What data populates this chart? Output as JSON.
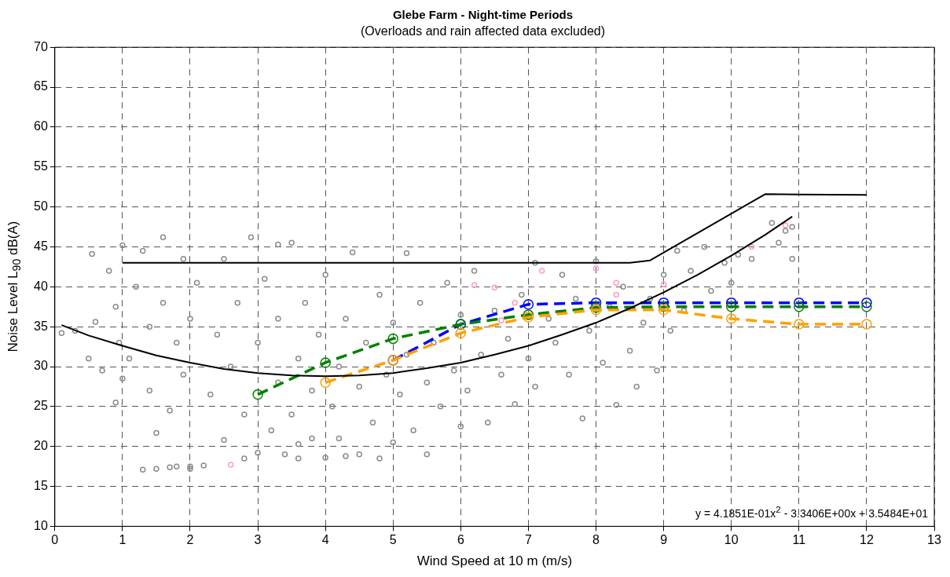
{
  "chart_data": {
    "type": "scatter",
    "title": "Glebe Farm - Night-time Periods",
    "subtitle": "(Overloads and rain affected data excluded)",
    "xlabel": "Wind Speed at 10 m (m/s)",
    "ylabel": "Noise Level L$_{90}$ dB(A)",
    "xlim": [
      0,
      13
    ],
    "xticks": [
      0,
      1,
      2,
      3,
      4,
      5,
      6,
      7,
      8,
      9,
      10,
      11,
      12,
      13
    ],
    "ylim": [
      10,
      70
    ],
    "yticks": [
      10,
      15,
      20,
      25,
      30,
      35,
      40,
      45,
      50,
      55,
      60,
      65,
      70
    ],
    "grid": true,
    "legend": false,
    "annotations": [
      "y = 4.1851E-01x$^{2}$ - 3.3406E+00x + 3.5484E+01"
    ],
    "series": [
      {
        "type": "scatter",
        "color": "#8c8c8c",
        "marker": "circle",
        "x": [
          0.1,
          0.3,
          0.5,
          0.55,
          0.6,
          0.7,
          0.8,
          0.9,
          0.9,
          0.95,
          1.0,
          1.0,
          1.1,
          1.2,
          1.3,
          1.3,
          1.4,
          1.4,
          1.5,
          1.5,
          1.6,
          1.6,
          1.7,
          1.8,
          1.8,
          1.9,
          1.9,
          2.0,
          2.0,
          2.1,
          2.2,
          2.3,
          2.4,
          2.5,
          2.5,
          2.6,
          2.7,
          2.8,
          2.8,
          2.9,
          3.0,
          3.0,
          3.1,
          3.2,
          3.3,
          3.3,
          3.4,
          3.5,
          3.5,
          3.6,
          3.6,
          3.7,
          3.8,
          3.8,
          3.9,
          4.0,
          4.0,
          4.1,
          4.2,
          4.2,
          4.3,
          4.4,
          4.5,
          4.5,
          4.6,
          4.7,
          4.8,
          4.9,
          5.0,
          5.0,
          5.1,
          5.2,
          5.2,
          5.3,
          5.4,
          5.5,
          5.5,
          5.6,
          5.7,
          5.8,
          5.9,
          6.0,
          6.0,
          6.1,
          6.2,
          6.3,
          6.4,
          6.5,
          6.6,
          6.7,
          6.8,
          6.9,
          7.0,
          7.1,
          7.1,
          7.3,
          7.4,
          7.5,
          7.6,
          7.7,
          7.8,
          7.9,
          8.0,
          8.1,
          8.2,
          8.3,
          8.4,
          8.5,
          8.6,
          8.7,
          8.8,
          8.9,
          9.0,
          9.1,
          9.2,
          9.3,
          9.4,
          9.6,
          9.7,
          9.9,
          10.0,
          10.1,
          10.3,
          10.6,
          10.7,
          10.8,
          10.9,
          10.9,
          2.0,
          1.7,
          3.3,
          4.3,
          3.6,
          4.8
        ],
        "values": [
          34.2,
          34.5,
          31,
          44.1,
          35.6,
          29.5,
          42,
          25.5,
          37.5,
          33,
          45.2,
          28.5,
          31,
          40,
          17.1,
          44.5,
          27,
          35,
          17.2,
          21.7,
          46.2,
          38,
          24.5,
          33,
          17.5,
          43.5,
          29,
          17.5,
          36,
          40.5,
          17.6,
          26.5,
          34,
          20.8,
          43.5,
          30,
          38,
          18.5,
          24,
          46.2,
          33,
          19.2,
          41,
          22,
          36,
          28,
          19,
          45.5,
          24,
          31,
          18.5,
          38,
          21,
          27,
          34,
          18.6,
          41.5,
          25,
          30,
          21,
          36,
          44.3,
          19,
          27.5,
          33,
          23,
          39,
          29,
          20.5,
          35.5,
          26.5,
          44.2,
          31.5,
          22,
          38,
          28,
          19,
          33,
          25,
          40.5,
          29.5,
          22.5,
          36.5,
          27,
          42,
          31.5,
          23,
          37,
          29,
          33.5,
          25.3,
          39,
          31,
          43,
          27.5,
          36,
          33,
          41.5,
          29,
          38.5,
          23.5,
          34.5,
          43.2,
          30.5,
          37.5,
          25.2,
          40,
          32,
          27.5,
          35.5,
          38.5,
          29.5,
          41.5,
          34.5,
          44.5,
          37,
          42,
          45,
          39.5,
          43,
          40.5,
          44,
          43.5,
          48,
          45.5,
          47,
          43.5,
          47.5,
          17.2,
          17.4,
          45.3,
          18.8,
          20.3,
          18.5
        ]
      },
      {
        "type": "scatter",
        "color": "#ff99cc",
        "marker": "circle",
        "x": [
          2.6,
          6.2,
          6.5,
          6.6,
          6.8,
          7.2,
          8.0,
          8.3,
          8.3,
          9.0,
          10.3,
          10.8
        ],
        "values": [
          17.7,
          40.2,
          39.9,
          35.8,
          38,
          42,
          42.3,
          40.5,
          39,
          40.3,
          45,
          47.7
        ]
      },
      {
        "type": "line",
        "color": "#000000",
        "marker": "none",
        "line_style": "solid",
        "x": [
          1,
          8.5,
          8.8,
          10.5,
          12
        ],
        "values": [
          43,
          43,
          43.3,
          51.6,
          51.5
        ]
      },
      {
        "type": "line",
        "color": "#000000",
        "marker": "none",
        "line_style": "solid",
        "x": [
          0.1,
          0.5,
          1,
          1.5,
          2,
          2.5,
          3,
          3.5,
          4,
          4.5,
          5,
          5.5,
          6,
          6.5,
          7,
          7.5,
          8,
          8.5,
          9,
          9.5,
          10,
          10.5,
          10.9
        ],
        "values": [
          35.2,
          33.9,
          32.6,
          31.4,
          30.5,
          29.7,
          29.2,
          28.9,
          28.8,
          28.9,
          29.2,
          29.8,
          30.5,
          31.5,
          32.6,
          34.0,
          35.5,
          37.3,
          39.3,
          41.5,
          43.9,
          46.5,
          48.8
        ]
      },
      {
        "type": "line",
        "color": "#ffa000",
        "marker": "circle",
        "line_style": "dashed",
        "x": [
          4,
          5,
          6,
          7,
          8,
          9,
          10,
          11,
          12
        ],
        "values": [
          28.0,
          30.8,
          34.2,
          36.2,
          37.1,
          37.1,
          36.0,
          35.3,
          35.3
        ]
      },
      {
        "type": "line",
        "color": "#008000",
        "marker": "circle",
        "line_style": "dashed",
        "x": [
          3,
          4,
          5,
          6,
          7,
          8,
          9,
          10,
          11,
          12
        ],
        "values": [
          26.5,
          30.5,
          33.5,
          35.3,
          36.5,
          37.4,
          37.5,
          37.5,
          37.5,
          37.5
        ]
      },
      {
        "type": "line",
        "color": "#0000ff",
        "marker": "circle",
        "line_style": "dashed",
        "x": [
          5,
          6,
          7,
          8,
          9,
          10,
          11,
          12
        ],
        "values": [
          30.8,
          35.3,
          37.8,
          38.0,
          38.0,
          38.0,
          38.0,
          38.0
        ]
      }
    ]
  }
}
